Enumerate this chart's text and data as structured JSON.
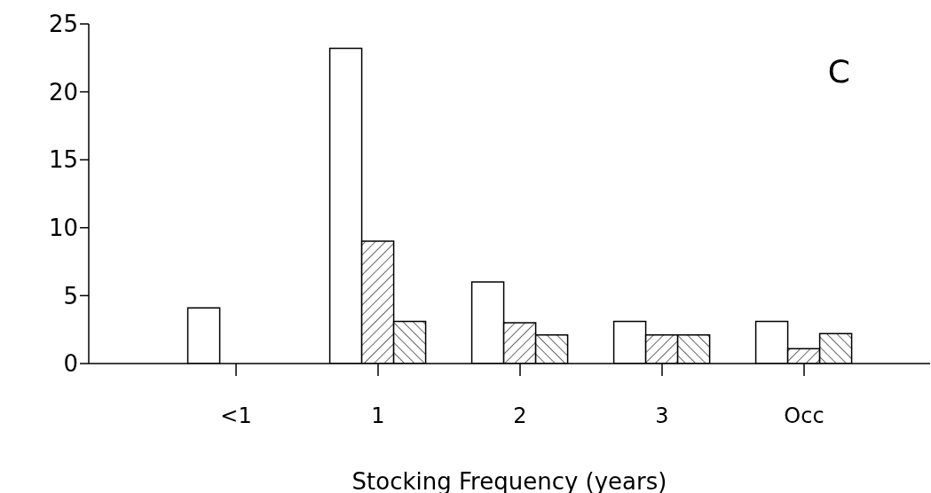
{
  "chart_data": {
    "type": "bar",
    "xlabel": "Stocking Frequency (years)",
    "categories": [
      "<1",
      "1",
      "2",
      "3",
      "Occ"
    ],
    "series": [
      {
        "color": "#ffffff",
        "values": [
          4.1,
          23.2,
          6,
          3.1,
          3.1
        ]
      },
      {
        "color": "#000000",
        "values": [
          null,
          9,
          3,
          2.1,
          1.1
        ]
      },
      {
        "color": "#000000",
        "values": [
          null,
          3.1,
          2.1,
          2.1,
          2.2
        ]
      }
    ],
    "ylim": [
      0,
      25
    ],
    "yticks": [
      0,
      5,
      10,
      15,
      20,
      25
    ],
    "grid": false,
    "legend": false,
    "annotations": [
      "C"
    ]
  }
}
